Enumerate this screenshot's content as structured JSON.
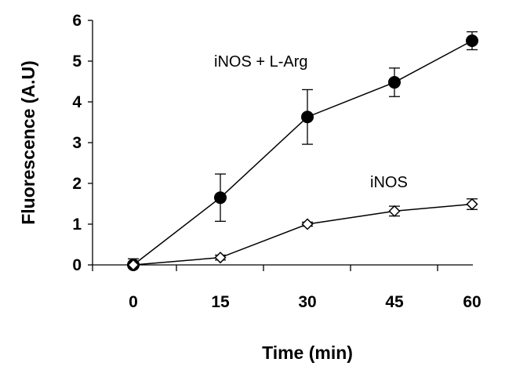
{
  "chart_data": {
    "type": "line",
    "xlabel": "Time (min)",
    "ylabel": "Fluorescence (A.U)",
    "x": [
      0,
      15,
      30,
      45,
      60
    ],
    "xticks": [
      "0",
      "15",
      "30",
      "45",
      "60"
    ],
    "yticks": [
      "0",
      "1",
      "2",
      "3",
      "4",
      "5",
      "6"
    ],
    "ylim": [
      0,
      6
    ],
    "grid": false,
    "series": [
      {
        "name": "iNOS + L-Arg",
        "marker": "filled-circle",
        "color": "#000000",
        "values": [
          0.0,
          1.65,
          3.63,
          4.48,
          5.5
        ],
        "errors": [
          0.15,
          0.58,
          0.67,
          0.35,
          0.22
        ]
      },
      {
        "name": "iNOS",
        "marker": "open-diamond",
        "color": "#000000",
        "values": [
          0.0,
          0.18,
          1.0,
          1.32,
          1.49
        ],
        "errors": [
          0.05,
          0.06,
          0.05,
          0.12,
          0.13
        ]
      }
    ]
  }
}
